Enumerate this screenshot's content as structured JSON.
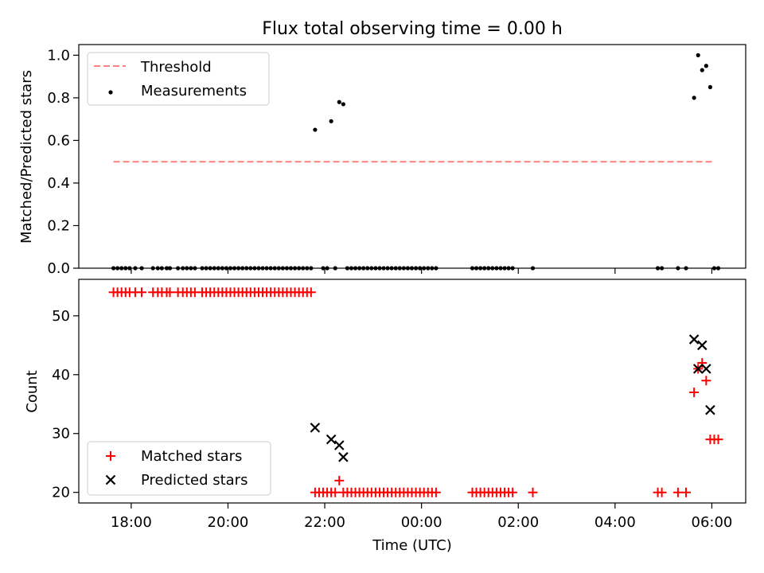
{
  "figure": {
    "title": "Flux total observing time = 0.00 h"
  },
  "colors": {
    "threshold": "#ff7f7f",
    "measurements": "#000000",
    "matched": "#ff0000",
    "predicted": "#000000"
  },
  "chart_data": [
    {
      "type": "scatter",
      "title": "",
      "xlabel": "",
      "ylabel": "Matched/Predicted stars",
      "ylim": [
        0,
        1.05
      ],
      "yticks": [
        0.0,
        0.2,
        0.4,
        0.6,
        0.8,
        1.0
      ],
      "ytick_labels": [
        "0.0",
        "0.2",
        "0.4",
        "0.6",
        "0.8",
        "1.0"
      ],
      "legend": {
        "placement": "top-left",
        "entries": [
          "Threshold",
          "Measurements"
        ]
      },
      "threshold": {
        "name": "Threshold",
        "value": 0.5,
        "x_start": "17:38",
        "x_end": "06:00"
      },
      "measurements": {
        "name": "Measurements",
        "points": [
          [
            "17:38",
            0
          ],
          [
            "17:43",
            0
          ],
          [
            "17:48",
            0
          ],
          [
            "17:53",
            0
          ],
          [
            "17:58",
            0
          ],
          [
            "18:05",
            0
          ],
          [
            "18:13",
            0
          ],
          [
            "18:27",
            0
          ],
          [
            "18:33",
            0
          ],
          [
            "18:38",
            0
          ],
          [
            "18:44",
            0
          ],
          [
            "18:48",
            0
          ],
          [
            "18:58",
            0
          ],
          [
            "19:04",
            0
          ],
          [
            "19:09",
            0
          ],
          [
            "19:14",
            0
          ],
          [
            "19:19",
            0
          ],
          [
            "19:28",
            0
          ],
          [
            "19:33",
            0
          ],
          [
            "19:38",
            0
          ],
          [
            "19:43",
            0
          ],
          [
            "19:48",
            0
          ],
          [
            "19:53",
            0
          ],
          [
            "19:58",
            0
          ],
          [
            "20:03",
            0
          ],
          [
            "20:08",
            0
          ],
          [
            "20:13",
            0
          ],
          [
            "20:18",
            0
          ],
          [
            "20:23",
            0
          ],
          [
            "20:28",
            0
          ],
          [
            "20:33",
            0
          ],
          [
            "20:38",
            0
          ],
          [
            "20:43",
            0
          ],
          [
            "20:48",
            0
          ],
          [
            "20:53",
            0
          ],
          [
            "20:58",
            0
          ],
          [
            "21:03",
            0
          ],
          [
            "21:08",
            0
          ],
          [
            "21:13",
            0
          ],
          [
            "21:18",
            0
          ],
          [
            "21:23",
            0
          ],
          [
            "21:28",
            0
          ],
          [
            "21:33",
            0
          ],
          [
            "21:38",
            0
          ],
          [
            "21:43",
            0
          ],
          [
            "21:48",
            0.65
          ],
          [
            "21:58",
            0
          ],
          [
            "22:03",
            0
          ],
          [
            "22:08",
            0.69
          ],
          [
            "22:13",
            0
          ],
          [
            "22:18",
            0.78
          ],
          [
            "22:23",
            0.77
          ],
          [
            "22:28",
            0
          ],
          [
            "22:33",
            0
          ],
          [
            "22:38",
            0
          ],
          [
            "22:43",
            0
          ],
          [
            "22:48",
            0
          ],
          [
            "22:53",
            0
          ],
          [
            "22:58",
            0
          ],
          [
            "23:03",
            0
          ],
          [
            "23:08",
            0
          ],
          [
            "23:13",
            0
          ],
          [
            "23:18",
            0
          ],
          [
            "23:23",
            0
          ],
          [
            "23:28",
            0
          ],
          [
            "23:33",
            0
          ],
          [
            "23:38",
            0
          ],
          [
            "23:43",
            0
          ],
          [
            "23:48",
            0
          ],
          [
            "23:53",
            0
          ],
          [
            "23:58",
            0
          ],
          [
            "00:03",
            0
          ],
          [
            "00:08",
            0
          ],
          [
            "00:13",
            0
          ],
          [
            "00:18",
            0
          ],
          [
            "01:03",
            0
          ],
          [
            "01:08",
            0
          ],
          [
            "01:13",
            0
          ],
          [
            "01:18",
            0
          ],
          [
            "01:23",
            0
          ],
          [
            "01:28",
            0
          ],
          [
            "01:33",
            0
          ],
          [
            "01:38",
            0
          ],
          [
            "01:43",
            0
          ],
          [
            "01:48",
            0
          ],
          [
            "01:53",
            0
          ],
          [
            "02:18",
            0
          ],
          [
            "04:53",
            0
          ],
          [
            "04:58",
            0
          ],
          [
            "05:18",
            0
          ],
          [
            "05:28",
            0
          ],
          [
            "05:38",
            0.8
          ],
          [
            "05:43",
            1.0
          ],
          [
            "05:48",
            0.93
          ],
          [
            "05:53",
            0.95
          ],
          [
            "05:58",
            0.85
          ],
          [
            "06:03",
            0
          ],
          [
            "06:08",
            0
          ]
        ]
      }
    },
    {
      "type": "scatter",
      "title": "",
      "xlabel": "Time (UTC)",
      "ylabel": "Count",
      "ylim": [
        18.2,
        56.2
      ],
      "yticks": [
        20,
        30,
        40,
        50
      ],
      "ytick_labels": [
        "20",
        "30",
        "40",
        "50"
      ],
      "xticks": [
        "18:00",
        "20:00",
        "22:00",
        "00:00",
        "02:00",
        "04:00",
        "06:00"
      ],
      "xlim": [
        "16:55",
        "06:42"
      ],
      "legend": {
        "placement": "bottom-left",
        "entries": [
          "Matched stars",
          "Predicted stars"
        ]
      },
      "matched_stars": {
        "name": "Matched stars",
        "points": [
          [
            "17:38",
            54
          ],
          [
            "17:43",
            54
          ],
          [
            "17:48",
            54
          ],
          [
            "17:53",
            54
          ],
          [
            "17:58",
            54
          ],
          [
            "18:05",
            54
          ],
          [
            "18:13",
            54
          ],
          [
            "18:27",
            54
          ],
          [
            "18:33",
            54
          ],
          [
            "18:38",
            54
          ],
          [
            "18:44",
            54
          ],
          [
            "18:48",
            54
          ],
          [
            "18:58",
            54
          ],
          [
            "19:04",
            54
          ],
          [
            "19:09",
            54
          ],
          [
            "19:14",
            54
          ],
          [
            "19:19",
            54
          ],
          [
            "19:28",
            54
          ],
          [
            "19:33",
            54
          ],
          [
            "19:38",
            54
          ],
          [
            "19:43",
            54
          ],
          [
            "19:48",
            54
          ],
          [
            "19:53",
            54
          ],
          [
            "19:58",
            54
          ],
          [
            "20:03",
            54
          ],
          [
            "20:08",
            54
          ],
          [
            "20:13",
            54
          ],
          [
            "20:18",
            54
          ],
          [
            "20:23",
            54
          ],
          [
            "20:28",
            54
          ],
          [
            "20:33",
            54
          ],
          [
            "20:38",
            54
          ],
          [
            "20:43",
            54
          ],
          [
            "20:48",
            54
          ],
          [
            "20:53",
            54
          ],
          [
            "20:58",
            54
          ],
          [
            "21:03",
            54
          ],
          [
            "21:08",
            54
          ],
          [
            "21:13",
            54
          ],
          [
            "21:18",
            54
          ],
          [
            "21:23",
            54
          ],
          [
            "21:28",
            54
          ],
          [
            "21:33",
            54
          ],
          [
            "21:38",
            54
          ],
          [
            "21:43",
            54
          ],
          [
            "21:48",
            20
          ],
          [
            "21:53",
            20
          ],
          [
            "21:58",
            20
          ],
          [
            "22:03",
            20
          ],
          [
            "22:08",
            20
          ],
          [
            "22:13",
            20
          ],
          [
            "22:18",
            22
          ],
          [
            "22:23",
            20
          ],
          [
            "22:28",
            20
          ],
          [
            "22:33",
            20
          ],
          [
            "22:38",
            20
          ],
          [
            "22:43",
            20
          ],
          [
            "22:48",
            20
          ],
          [
            "22:53",
            20
          ],
          [
            "22:58",
            20
          ],
          [
            "23:03",
            20
          ],
          [
            "23:08",
            20
          ],
          [
            "23:13",
            20
          ],
          [
            "23:18",
            20
          ],
          [
            "23:23",
            20
          ],
          [
            "23:28",
            20
          ],
          [
            "23:33",
            20
          ],
          [
            "23:38",
            20
          ],
          [
            "23:43",
            20
          ],
          [
            "23:48",
            20
          ],
          [
            "23:53",
            20
          ],
          [
            "23:58",
            20
          ],
          [
            "00:03",
            20
          ],
          [
            "00:08",
            20
          ],
          [
            "00:13",
            20
          ],
          [
            "00:18",
            20
          ],
          [
            "01:03",
            20
          ],
          [
            "01:08",
            20
          ],
          [
            "01:13",
            20
          ],
          [
            "01:18",
            20
          ],
          [
            "01:23",
            20
          ],
          [
            "01:28",
            20
          ],
          [
            "01:33",
            20
          ],
          [
            "01:38",
            20
          ],
          [
            "01:43",
            20
          ],
          [
            "01:48",
            20
          ],
          [
            "01:53",
            20
          ],
          [
            "02:18",
            20
          ],
          [
            "04:53",
            20
          ],
          [
            "04:58",
            20
          ],
          [
            "05:18",
            20
          ],
          [
            "05:28",
            20
          ],
          [
            "05:38",
            37
          ],
          [
            "05:43",
            41
          ],
          [
            "05:48",
            42
          ],
          [
            "05:53",
            39
          ],
          [
            "05:58",
            29
          ],
          [
            "06:03",
            29
          ],
          [
            "06:08",
            29
          ]
        ]
      },
      "predicted_stars": {
        "name": "Predicted stars",
        "points": [
          [
            "21:48",
            31
          ],
          [
            "22:08",
            29
          ],
          [
            "22:18",
            28
          ],
          [
            "22:23",
            26
          ],
          [
            "05:38",
            46
          ],
          [
            "05:43",
            41
          ],
          [
            "05:48",
            45
          ],
          [
            "05:53",
            41
          ],
          [
            "05:58",
            34
          ]
        ]
      }
    }
  ]
}
